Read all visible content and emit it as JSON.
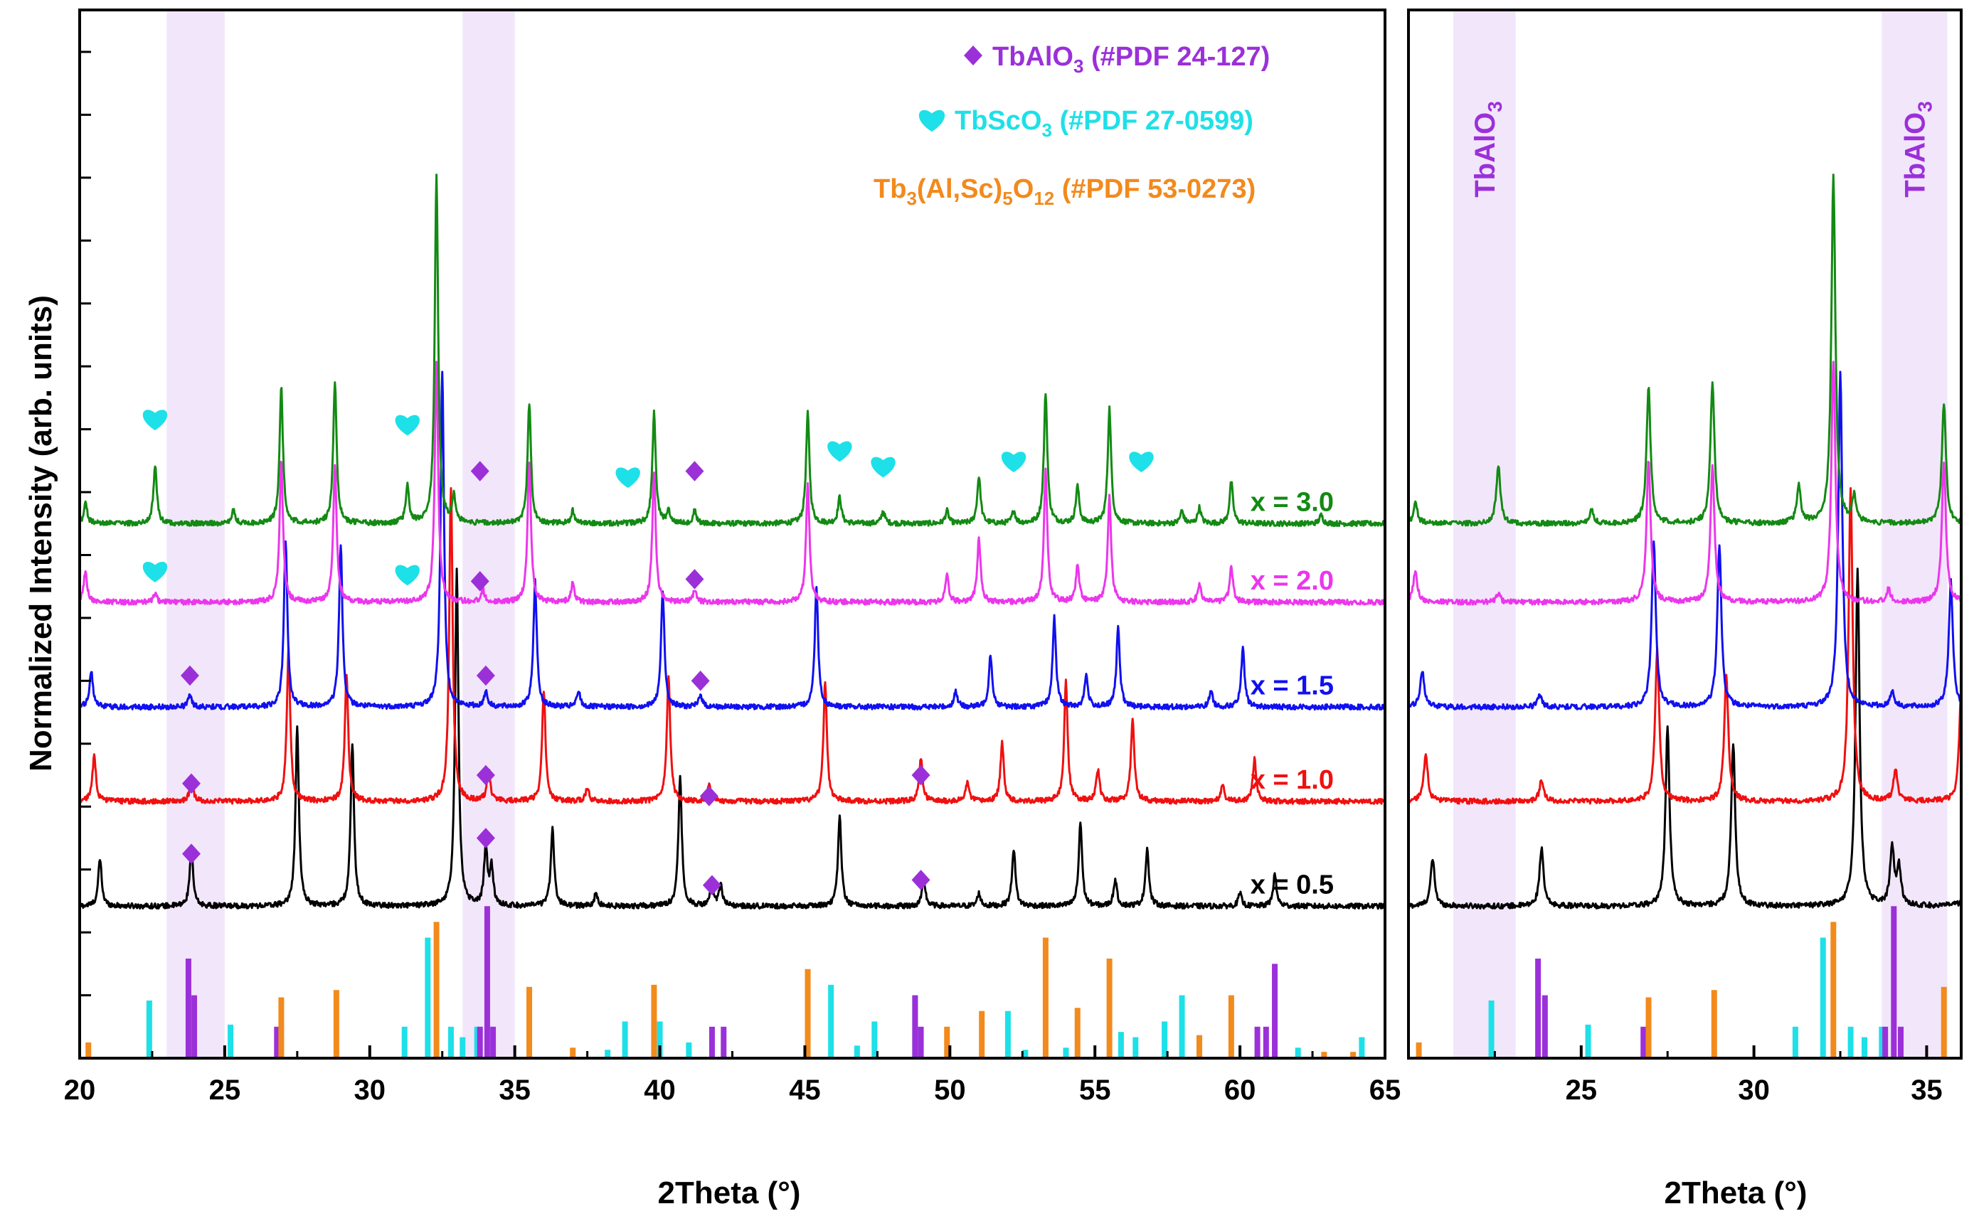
{
  "colors": {
    "tbalo3": "#9b30d9",
    "tbsco3": "#1ee0e8",
    "garnet": "#f28a1c",
    "band": "#f2e6fb",
    "x30": "#138a13",
    "x20": "#ec36ec",
    "x15": "#1010f0",
    "x10": "#f01010",
    "x05": "#000000"
  },
  "legend": [
    {
      "marker": "diamond",
      "color_key": "tbalo3",
      "pre": "TbAlO",
      "sub": "3",
      "post": " (#PDF 24-127)"
    },
    {
      "marker": "heart",
      "color_key": "tbsco3",
      "pre": "TbScO",
      "sub": "3",
      "post": " (#PDF 27-0599)"
    },
    {
      "marker": "none",
      "color_key": "garnet",
      "parts": [
        {
          "t": "Tb",
          "s": false
        },
        {
          "t": "3",
          "s": true
        },
        {
          "t": "(Al,Sc)",
          "s": false
        },
        {
          "t": "5",
          "s": true
        },
        {
          "t": "O",
          "s": false
        },
        {
          "t": "12",
          "s": true
        },
        {
          "t": " (#PDF 53-0273)",
          "s": false
        }
      ]
    }
  ],
  "band_label": {
    "pre": "TbAlO",
    "sub": "3"
  },
  "chart_data": [
    {
      "id": "main",
      "type": "line",
      "xlabel": "2Theta (°)",
      "ylabel": "Normalized Intensity (arb. units)",
      "xlim": [
        20,
        65
      ],
      "xticks": [
        20,
        25,
        30,
        35,
        40,
        45,
        50,
        55,
        60,
        65
      ],
      "xtick_labels": [
        "20",
        "25",
        "30",
        "35",
        "40",
        "45",
        "50",
        "55",
        "60",
        "65"
      ],
      "ylim": [
        0,
        10
      ],
      "yticks": [
        0,
        0.6,
        1.2,
        1.8,
        2.4,
        3.0,
        3.6,
        4.2,
        4.8,
        5.4,
        6.0,
        6.6,
        7.2,
        7.8,
        8.4,
        9.0,
        9.6
      ],
      "highlight_bands": [
        [
          23.0,
          25.0
        ],
        [
          33.2,
          35.0
        ]
      ],
      "series": [
        {
          "name": "x = 0.5",
          "color_key": "x05",
          "baseline": 1.45,
          "peaks": [
            [
              20.7,
              0.45
            ],
            [
              23.85,
              0.55
            ],
            [
              27.5,
              1.7
            ],
            [
              29.4,
              1.55
            ],
            [
              33.0,
              3.2
            ],
            [
              34.0,
              0.55
            ],
            [
              34.2,
              0.35
            ],
            [
              36.3,
              0.75
            ],
            [
              37.8,
              0.12
            ],
            [
              40.7,
              1.25
            ],
            [
              41.8,
              0.2
            ],
            [
              42.1,
              0.2
            ],
            [
              46.2,
              0.85
            ],
            [
              49.1,
              0.25
            ],
            [
              51.0,
              0.12
            ],
            [
              52.2,
              0.55
            ],
            [
              54.5,
              0.8
            ],
            [
              55.7,
              0.25
            ],
            [
              56.8,
              0.55
            ],
            [
              60.0,
              0.12
            ],
            [
              61.2,
              0.3
            ]
          ]
        },
        {
          "name": "x = 1.0",
          "color_key": "x10",
          "baseline": 2.45,
          "peaks": [
            [
              20.5,
              0.45
            ],
            [
              23.85,
              0.2
            ],
            [
              27.2,
              1.45
            ],
            [
              29.2,
              1.2
            ],
            [
              32.8,
              3.0
            ],
            [
              34.1,
              0.3
            ],
            [
              36.0,
              1.05
            ],
            [
              37.5,
              0.12
            ],
            [
              40.3,
              1.2
            ],
            [
              41.7,
              0.15
            ],
            [
              45.7,
              1.15
            ],
            [
              49.0,
              0.4
            ],
            [
              50.6,
              0.18
            ],
            [
              51.8,
              0.55
            ],
            [
              54.0,
              1.15
            ],
            [
              55.1,
              0.3
            ],
            [
              56.3,
              0.8
            ],
            [
              59.4,
              0.15
            ],
            [
              60.5,
              0.4
            ]
          ]
        },
        {
          "name": "x = 1.5",
          "color_key": "x15",
          "baseline": 3.35,
          "peaks": [
            [
              20.4,
              0.35
            ],
            [
              23.8,
              0.12
            ],
            [
              27.1,
              1.6
            ],
            [
              29.0,
              1.55
            ],
            [
              32.5,
              3.2
            ],
            [
              34.0,
              0.15
            ],
            [
              35.7,
              1.2
            ],
            [
              37.2,
              0.15
            ],
            [
              40.1,
              1.1
            ],
            [
              41.4,
              0.12
            ],
            [
              45.4,
              1.15
            ],
            [
              50.2,
              0.15
            ],
            [
              51.4,
              0.5
            ],
            [
              53.6,
              0.85
            ],
            [
              54.7,
              0.3
            ],
            [
              55.8,
              0.75
            ],
            [
              59.0,
              0.15
            ],
            [
              60.1,
              0.55
            ]
          ]
        },
        {
          "name": "x = 2.0",
          "color_key": "x20",
          "baseline": 4.35,
          "peaks": [
            [
              20.2,
              0.3
            ],
            [
              22.6,
              0.08
            ],
            [
              26.95,
              1.35
            ],
            [
              28.8,
              1.3
            ],
            [
              32.3,
              2.3
            ],
            [
              33.9,
              0.12
            ],
            [
              35.5,
              1.35
            ],
            [
              37.0,
              0.18
            ],
            [
              39.8,
              1.25
            ],
            [
              41.2,
              0.12
            ],
            [
              45.1,
              1.15
            ],
            [
              49.9,
              0.25
            ],
            [
              51.0,
              0.6
            ],
            [
              53.3,
              1.25
            ],
            [
              54.4,
              0.35
            ],
            [
              55.5,
              1.0
            ],
            [
              58.6,
              0.18
            ],
            [
              59.7,
              0.35
            ]
          ]
        },
        {
          "name": "x = 3.0",
          "color_key": "x30",
          "baseline": 5.1,
          "peaks": [
            [
              20.2,
              0.2
            ],
            [
              22.6,
              0.55
            ],
            [
              25.3,
              0.12
            ],
            [
              26.95,
              1.3
            ],
            [
              28.8,
              1.35
            ],
            [
              31.3,
              0.35
            ],
            [
              32.3,
              3.3
            ],
            [
              32.9,
              0.25
            ],
            [
              35.5,
              1.15
            ],
            [
              37.0,
              0.12
            ],
            [
              39.8,
              1.05
            ],
            [
              40.3,
              0.12
            ],
            [
              41.2,
              0.12
            ],
            [
              45.1,
              1.05
            ],
            [
              46.2,
              0.25
            ],
            [
              47.7,
              0.12
            ],
            [
              49.9,
              0.12
            ],
            [
              51.0,
              0.45
            ],
            [
              52.2,
              0.12
            ],
            [
              53.3,
              1.25
            ],
            [
              54.4,
              0.35
            ],
            [
              55.5,
              1.1
            ],
            [
              58.0,
              0.12
            ],
            [
              58.6,
              0.15
            ],
            [
              59.7,
              0.4
            ],
            [
              62.8,
              0.08
            ]
          ]
        }
      ],
      "series_labels": [
        {
          "text": "x = 3.0",
          "color_key": "x30"
        },
        {
          "text": "x = 2.0",
          "color_key": "x20"
        },
        {
          "text": "x = 1.5",
          "color_key": "x15"
        },
        {
          "text": "x = 1.0",
          "color_key": "x10"
        },
        {
          "text": "x = 0.5",
          "color_key": "x05"
        }
      ],
      "markers": [
        {
          "type": "heart",
          "x": 22.6,
          "y": 6.1
        },
        {
          "type": "heart",
          "x": 31.3,
          "y": 6.05
        },
        {
          "type": "diamond",
          "x": 33.8,
          "y": 5.6
        },
        {
          "type": "heart",
          "x": 38.9,
          "y": 5.55
        },
        {
          "type": "diamond",
          "x": 41.2,
          "y": 5.6
        },
        {
          "type": "heart",
          "x": 46.2,
          "y": 5.8
        },
        {
          "type": "heart",
          "x": 47.7,
          "y": 5.65
        },
        {
          "type": "heart",
          "x": 52.2,
          "y": 5.7
        },
        {
          "type": "heart",
          "x": 56.6,
          "y": 5.7
        },
        {
          "type": "heart",
          "x": 22.6,
          "y": 4.65
        },
        {
          "type": "heart",
          "x": 31.3,
          "y": 4.62
        },
        {
          "type": "diamond",
          "x": 33.8,
          "y": 4.55
        },
        {
          "type": "diamond",
          "x": 41.2,
          "y": 4.57
        },
        {
          "type": "diamond",
          "x": 23.8,
          "y": 3.65
        },
        {
          "type": "diamond",
          "x": 34.0,
          "y": 3.65
        },
        {
          "type": "diamond",
          "x": 41.4,
          "y": 3.6
        },
        {
          "type": "diamond",
          "x": 23.85,
          "y": 2.62
        },
        {
          "type": "diamond",
          "x": 34.0,
          "y": 2.7
        },
        {
          "type": "diamond",
          "x": 41.7,
          "y": 2.5
        },
        {
          "type": "diamond",
          "x": 49.0,
          "y": 2.7
        },
        {
          "type": "diamond",
          "x": 23.85,
          "y": 1.95
        },
        {
          "type": "diamond",
          "x": 34.0,
          "y": 2.1
        },
        {
          "type": "diamond",
          "x": 41.8,
          "y": 1.65
        },
        {
          "type": "diamond",
          "x": 49.0,
          "y": 1.7
        }
      ],
      "reference_sticks": [
        {
          "phase": "TbScO3",
          "color_key": "tbsco3",
          "positions": [
            22.4,
            25.2,
            31.2,
            32.0,
            32.8,
            33.2,
            33.7,
            38.2,
            38.8,
            40.0,
            41.0,
            45.9,
            46.8,
            47.4,
            48.8,
            52.0,
            52.6,
            54.0,
            55.9,
            56.4,
            57.4,
            58.0,
            62.0,
            64.2
          ],
          "heights": [
            0.55,
            0.32,
            0.3,
            1.15,
            0.3,
            0.2,
            0.3,
            0.08,
            0.35,
            0.35,
            0.15,
            0.7,
            0.12,
            0.35,
            0.6,
            0.45,
            0.08,
            0.1,
            0.25,
            0.2,
            0.35,
            0.6,
            0.1,
            0.2
          ]
        },
        {
          "phase": "TbAlO3",
          "color_key": "tbalo3",
          "positions": [
            23.75,
            23.95,
            26.8,
            33.8,
            34.05,
            34.25,
            41.8,
            42.2,
            48.8,
            49.0,
            60.6,
            60.9,
            61.2
          ],
          "heights": [
            0.95,
            0.6,
            0.3,
            0.3,
            1.45,
            0.3,
            0.3,
            0.3,
            0.6,
            0.3,
            0.3,
            0.3,
            0.9
          ]
        },
        {
          "phase": "Tb3(Al,Sc)5O12",
          "color_key": "garnet",
          "positions": [
            20.3,
            26.95,
            28.85,
            32.3,
            35.5,
            37.0,
            39.8,
            45.1,
            49.9,
            51.1,
            53.3,
            54.4,
            55.5,
            58.6,
            59.7,
            62.9,
            63.9
          ],
          "heights": [
            0.15,
            0.58,
            0.65,
            1.3,
            0.68,
            0.1,
            0.7,
            0.85,
            0.3,
            0.45,
            1.15,
            0.48,
            0.95,
            0.22,
            0.6,
            0.06,
            0.06
          ]
        }
      ]
    },
    {
      "id": "zoom",
      "type": "line",
      "xlabel": "2Theta (°)",
      "xlim": [
        20.0,
        36.0
      ],
      "xticks": [
        25,
        30,
        35
      ],
      "xtick_labels": [
        "25",
        "30",
        "35"
      ],
      "ylim": [
        0,
        10
      ],
      "highlight_bands": [
        [
          21.3,
          23.1
        ],
        [
          33.7,
          35.6
        ]
      ]
    }
  ]
}
